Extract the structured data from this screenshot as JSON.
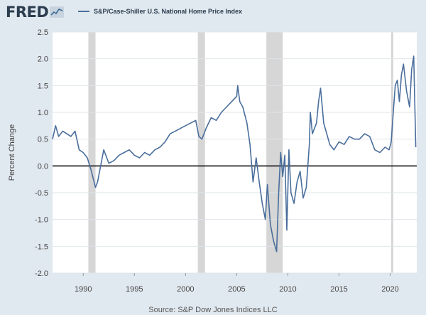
{
  "header": {
    "logo_text": "FRED",
    "logo_mark": "fred-graph-mark-icon"
  },
  "source": "Source: S&P Dow Jones Indices LLC",
  "colors": {
    "series": "#4a6e9c",
    "recession": "#d6d6d6",
    "zero_line": "#000000",
    "grid": "#dfe4ea",
    "background": "#e1e9f0"
  },
  "chart_data": {
    "type": "line",
    "title": "",
    "xlabel": "",
    "ylabel": "Percent Change",
    "xlim": [
      1987,
      2022.6
    ],
    "ylim": [
      -2.0,
      2.5
    ],
    "y_ticks": [
      "2.5",
      "2.0",
      "1.5",
      "1.0",
      "0.5",
      "0.0",
      "-0.5",
      "-1.0",
      "-1.5",
      "-2.0"
    ],
    "x_ticks": [
      "1990",
      "1995",
      "2000",
      "2005",
      "2010",
      "2015",
      "2020"
    ],
    "grid": true,
    "legend": "top",
    "recessions": [
      [
        1990.5,
        1991.2
      ],
      [
        2001.2,
        2001.9
      ],
      [
        2007.9,
        2009.5
      ],
      [
        2020.1,
        2020.3
      ]
    ],
    "series": [
      {
        "name": "S&P/Case-Shiller U.S. National Home Price Index",
        "x": [
          1987.0,
          1987.3,
          1987.6,
          1988.0,
          1988.4,
          1988.8,
          1989.2,
          1989.6,
          1990.0,
          1990.4,
          1990.8,
          1991.0,
          1991.2,
          1991.4,
          1991.6,
          1992.0,
          1992.5,
          1993.0,
          1993.5,
          1994.0,
          1994.5,
          1995.0,
          1995.5,
          1996.0,
          1996.5,
          1997.0,
          1997.5,
          1998.0,
          1998.5,
          1999.0,
          1999.5,
          2000.0,
          2000.5,
          2001.0,
          2001.3,
          2001.6,
          2002.0,
          2002.5,
          2003.0,
          2003.5,
          2004.0,
          2004.5,
          2005.0,
          2005.1,
          2005.3,
          2005.6,
          2006.0,
          2006.3,
          2006.6,
          2006.9,
          2007.2,
          2007.5,
          2007.8,
          2008.0,
          2008.3,
          2008.6,
          2008.9,
          2009.1,
          2009.3,
          2009.5,
          2009.7,
          2009.9,
          2010.1,
          2010.3,
          2010.6,
          2010.9,
          2011.2,
          2011.5,
          2011.8,
          2012.1,
          2012.2,
          2012.4,
          2012.6,
          2012.8,
          2013.0,
          2013.2,
          2013.5,
          2013.8,
          2014.1,
          2014.5,
          2015.0,
          2015.5,
          2016.0,
          2016.5,
          2017.0,
          2017.5,
          2018.0,
          2018.5,
          2019.0,
          2019.5,
          2019.9,
          2020.1,
          2020.3,
          2020.5,
          2020.7,
          2020.9,
          2021.1,
          2021.3,
          2021.6,
          2021.9,
          2022.1,
          2022.3,
          2022.5
        ],
        "values": [
          0.5,
          0.75,
          0.55,
          0.65,
          0.6,
          0.55,
          0.65,
          0.3,
          0.25,
          0.15,
          -0.1,
          -0.25,
          -0.4,
          -0.3,
          -0.1,
          0.3,
          0.05,
          0.1,
          0.2,
          0.25,
          0.3,
          0.2,
          0.15,
          0.25,
          0.2,
          0.3,
          0.35,
          0.45,
          0.6,
          0.65,
          0.7,
          0.75,
          0.8,
          0.85,
          0.55,
          0.5,
          0.7,
          0.9,
          0.85,
          1.0,
          1.1,
          1.2,
          1.3,
          1.5,
          1.2,
          1.1,
          0.8,
          0.4,
          -0.3,
          0.15,
          -0.3,
          -0.7,
          -1.0,
          -0.35,
          -1.1,
          -1.4,
          -1.6,
          -0.5,
          0.25,
          -0.2,
          0.2,
          -1.2,
          0.3,
          -0.5,
          -0.7,
          -0.3,
          -0.1,
          -0.6,
          -0.4,
          0.4,
          1.0,
          0.6,
          0.7,
          0.8,
          1.2,
          1.45,
          0.8,
          0.6,
          0.4,
          0.3,
          0.45,
          0.4,
          0.55,
          0.5,
          0.5,
          0.6,
          0.55,
          0.3,
          0.25,
          0.35,
          0.3,
          0.45,
          1.0,
          1.5,
          1.6,
          1.2,
          1.7,
          1.9,
          1.4,
          1.1,
          1.8,
          2.05,
          0.35
        ]
      }
    ]
  }
}
